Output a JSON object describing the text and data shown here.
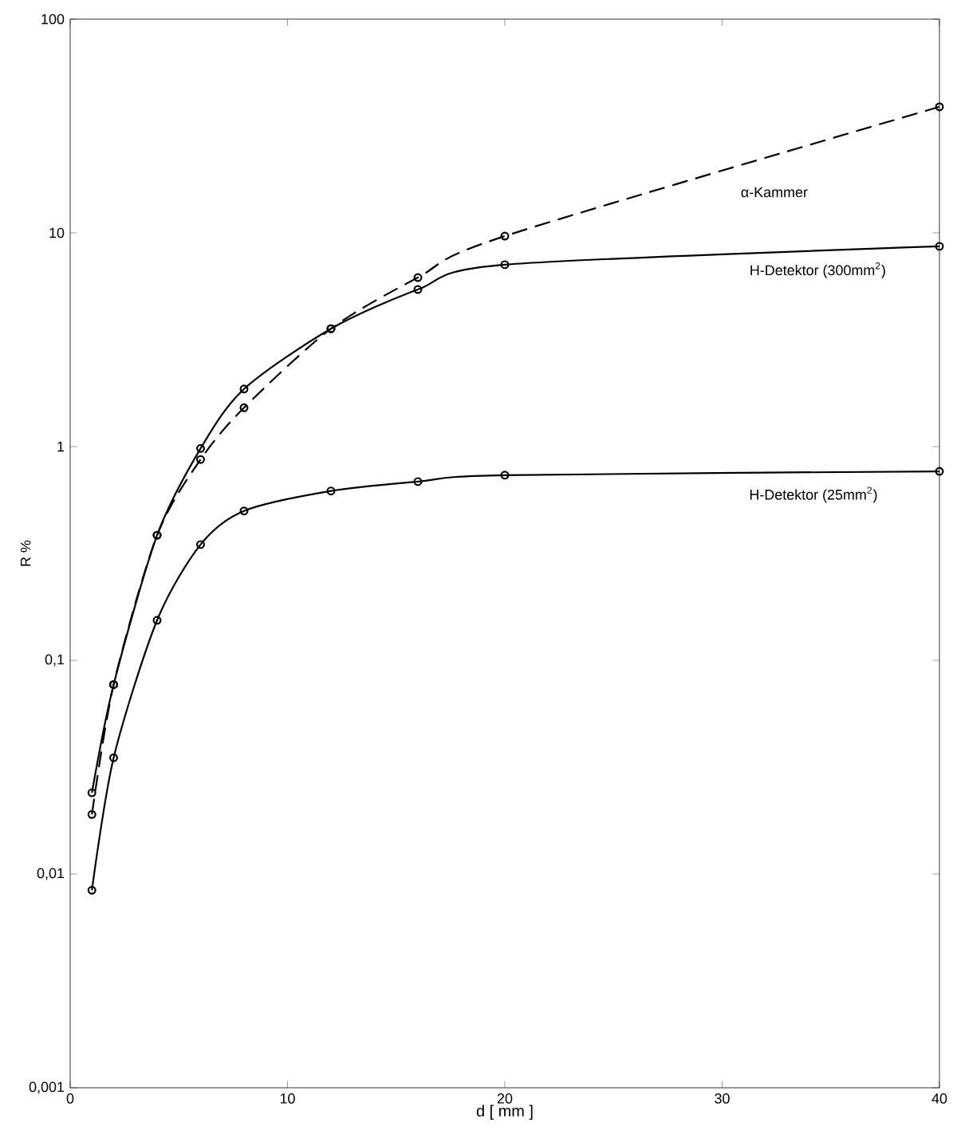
{
  "chart_data": {
    "type": "line",
    "xlabel": "d [ mm ]",
    "ylabel": "R %",
    "log": "y",
    "marker": "circle",
    "grid": false,
    "legend": false,
    "xlim": [
      0,
      40
    ],
    "xticks": [
      0,
      10,
      20,
      30,
      40
    ],
    "ylim": [
      0.001,
      100
    ],
    "yticks": [
      {
        "value": 0.001,
        "label": "0,001"
      },
      {
        "value": 0.01,
        "label": "0,01"
      },
      {
        "value": 0.1,
        "label": "0,1"
      },
      1,
      10,
      100
    ],
    "series": [
      {
        "name": "α-Kammer",
        "color": "#000000",
        "line_style": "dashed",
        "x": [
          1,
          2,
          4,
          6,
          8,
          12,
          16,
          20,
          40
        ],
        "values": [
          0.019,
          0.077,
          0.385,
          0.87,
          1.52,
          3.56,
          6.18,
          9.66,
          38.9
        ]
      },
      {
        "name": "H-Detektor (300mm$^{2}$)",
        "color": "#000000",
        "line_style": "solid",
        "x": [
          1,
          2,
          4,
          6,
          8,
          12,
          16,
          20,
          40
        ],
        "values": [
          0.024,
          0.077,
          0.385,
          0.98,
          1.86,
          3.56,
          5.43,
          7.1,
          8.65
        ]
      },
      {
        "name": "H-Detektor (25mm$^{2}$)",
        "color": "#000000",
        "line_style": "solid",
        "x": [
          1,
          2,
          4,
          6,
          8,
          12,
          16,
          20,
          40
        ],
        "values": [
          0.0084,
          0.035,
          0.154,
          0.348,
          0.5,
          0.62,
          0.686,
          0.735,
          0.766
        ]
      }
    ]
  }
}
